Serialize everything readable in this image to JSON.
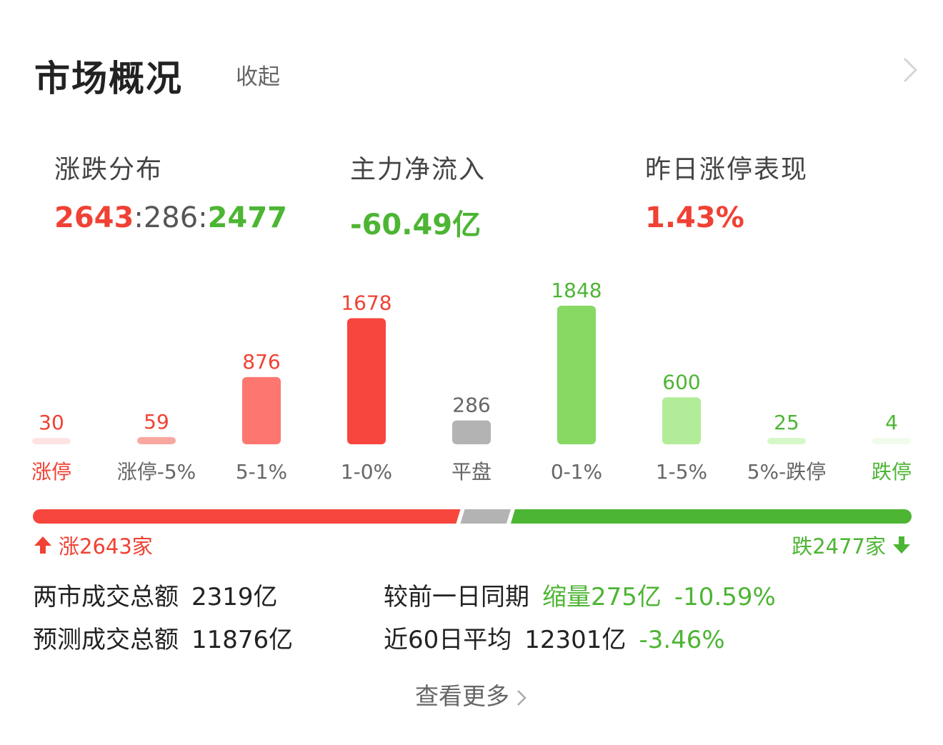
{
  "header": {
    "title": "市场概况",
    "collapse_label": "收起",
    "chevron_icon": "chevron-right-icon"
  },
  "stats": {
    "distribution": {
      "label": "涨跌分布",
      "up": "2643",
      "flat": "286",
      "down": "2477",
      "separator": ":"
    },
    "netflow": {
      "label": "主力净流入",
      "value": "-60.49亿"
    },
    "limitup_perf": {
      "label": "昨日涨停表现",
      "value": "1.43%"
    }
  },
  "chart_data": {
    "type": "bar",
    "categories": [
      "涨停",
      "涨停-5%",
      "5-1%",
      "1-0%",
      "平盘",
      "0-1%",
      "1-5%",
      "5%-跌停",
      "跌停"
    ],
    "values": [
      30,
      59,
      876,
      1678,
      286,
      1848,
      600,
      25,
      4
    ],
    "bar_colors": [
      "#fde4e2",
      "#f9a7a1",
      "#fd7770",
      "#f7463d",
      "#b3b3b3",
      "#86d963",
      "#b3ec98",
      "#d6f7c7",
      "#f0fbeb"
    ],
    "label_colors": [
      "#f04134",
      "#f04134",
      "#f04134",
      "#f04134",
      "#666666",
      "#4db534",
      "#4db534",
      "#4db534",
      "#4db534"
    ],
    "category_label_colors": [
      "#f04134",
      "#666666",
      "#666666",
      "#666666",
      "#666666",
      "#666666",
      "#666666",
      "#666666",
      "#4db534"
    ]
  },
  "split": {
    "up_count": 2643,
    "flat_count": 286,
    "down_count": 2477,
    "up_color": "#f7463d",
    "flat_color": "#b3b3b3",
    "down_color": "#4db534",
    "up_text": "涨2643家",
    "down_text": "跌2477家",
    "up_icon": "arrow-up-icon",
    "down_icon": "arrow-down-icon"
  },
  "turnover": {
    "total_label": "两市成交总额",
    "total_value": "2319亿",
    "compare_label": "较前一日同期",
    "compare_change": "缩量275亿",
    "compare_pct": "-10.59%",
    "forecast_label": "预测成交总额",
    "forecast_value": "11876亿",
    "avg60_label": "近60日平均",
    "avg60_value": "12301亿",
    "avg60_pct": "-3.46%"
  },
  "footer": {
    "see_more_label": "查看更多",
    "see_more_icon": "chevron-right-icon"
  }
}
